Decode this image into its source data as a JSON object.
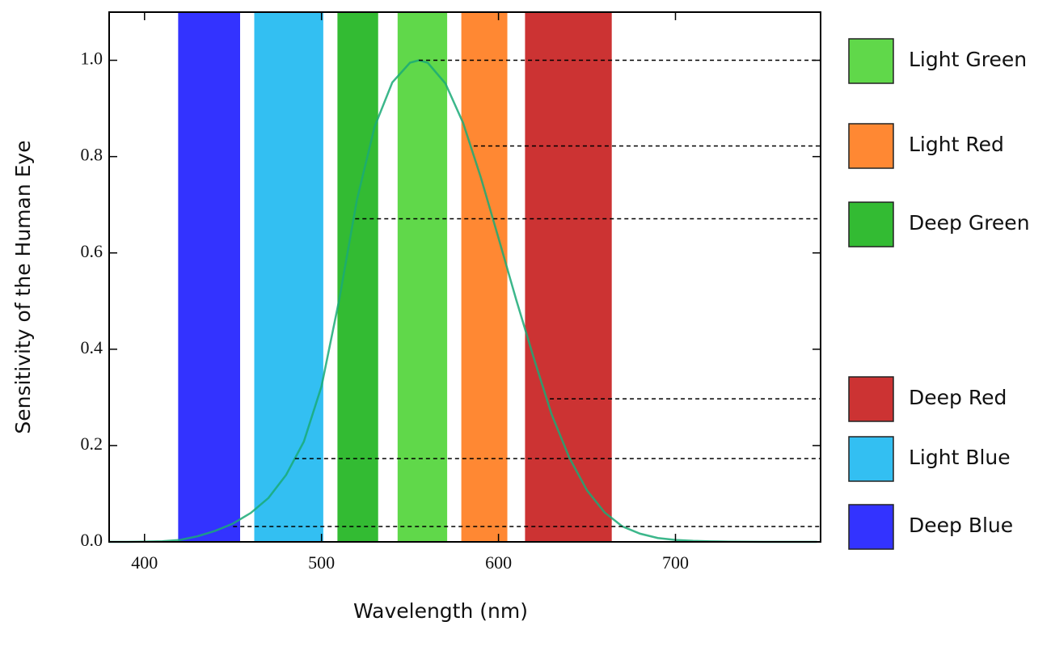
{
  "chart_data": {
    "type": "band-curve",
    "xlabel": "Wavelength (nm)",
    "ylabel": "Sensitivity of the Human Eye",
    "xlim": [
      380,
      782
    ],
    "ylim": [
      0,
      1.1
    ],
    "xticks": [
      400,
      500,
      600,
      700
    ],
    "yticks": [
      {
        "value": 0,
        "label": "0.0"
      },
      0.2,
      0.4,
      0.6,
      0.8,
      {
        "value": 1,
        "label": "1.0"
      }
    ],
    "curve": {
      "color": "#1aaa77",
      "x": [
        380,
        390,
        400,
        410,
        420,
        430,
        440,
        450,
        460,
        470,
        480,
        490,
        500,
        510,
        520,
        530,
        540,
        550,
        555,
        560,
        570,
        580,
        590,
        600,
        610,
        620,
        630,
        640,
        650,
        660,
        670,
        680,
        690,
        700,
        710,
        720,
        730,
        740,
        750,
        760,
        770,
        780
      ],
      "values": [
        0,
        0.0001,
        0.0004,
        0.0012,
        0.004,
        0.0116,
        0.023,
        0.038,
        0.06,
        0.091,
        0.139,
        0.208,
        0.323,
        0.503,
        0.71,
        0.862,
        0.954,
        0.995,
        1.0,
        0.995,
        0.952,
        0.87,
        0.757,
        0.631,
        0.503,
        0.381,
        0.265,
        0.175,
        0.107,
        0.061,
        0.032,
        0.017,
        0.008,
        0.004,
        0.002,
        0.001,
        0.0005,
        0.0002,
        0.0001,
        0,
        0,
        0
      ]
    },
    "series": [
      {
        "name": "Light Green",
        "color": "#60d84a",
        "range": [
          543,
          571
        ],
        "level": 1.0,
        "level_start": 555
      },
      {
        "name": "Light Red",
        "color": "#ff8833",
        "range": [
          579,
          605
        ],
        "level": 0.822,
        "level_start": 586
      },
      {
        "name": "Deep Green",
        "color": "#33bb33",
        "range": [
          509,
          532
        ],
        "level": 0.671,
        "level_start": 519
      },
      {
        "name": "Deep Red",
        "color": "#cc3333",
        "range": [
          615,
          664
        ],
        "level": 0.297,
        "level_start": 629
      },
      {
        "name": "Light Blue",
        "color": "#33bff2",
        "range": [
          462,
          501
        ],
        "level": 0.173,
        "level_start": 485
      },
      {
        "name": "Deep Blue",
        "color": "#3333ff",
        "range": [
          419,
          454
        ],
        "level": 0.032,
        "level_start": 450
      }
    ]
  }
}
